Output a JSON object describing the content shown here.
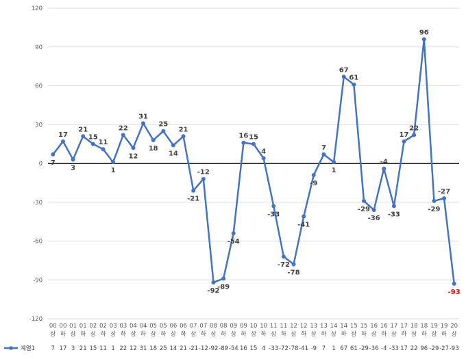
{
  "colors": {
    "series": "#4472c4",
    "grid": "#d9d9d9",
    "zero_line": "#000000",
    "highlight_label": "#ff0000"
  },
  "chart_data": {
    "type": "line",
    "title": "",
    "xlabel": "",
    "ylabel": "",
    "ylim": [
      -120,
      120
    ],
    "yticks": [
      -120,
      -90,
      -60,
      -30,
      0,
      30,
      60,
      90,
      120
    ],
    "grid": true,
    "legend_position": "bottom-left, in data table",
    "data_table": true,
    "categories_top": [
      "00",
      "00",
      "01",
      "01",
      "02",
      "02",
      "03",
      "03",
      "04",
      "04",
      "05",
      "05",
      "06",
      "06",
      "07",
      "07",
      "08",
      "08",
      "09",
      "09",
      "10",
      "10",
      "11",
      "11",
      "12",
      "12",
      "13",
      "13",
      "14",
      "14",
      "15",
      "15",
      "16",
      "16",
      "17",
      "17",
      "18",
      "18",
      "19",
      "19",
      "20"
    ],
    "categories_bottom": [
      "상",
      "하",
      "상",
      "하",
      "상",
      "하",
      "상",
      "하",
      "상",
      "하",
      "상",
      "하",
      "상",
      "하",
      "상",
      "하",
      "상",
      "하",
      "상",
      "하",
      "상",
      "하",
      "상",
      "하",
      "상",
      "하",
      "상",
      "하",
      "상",
      "하",
      "상",
      "하",
      "상",
      "하",
      "상",
      "하",
      "상",
      "하",
      "상",
      "하",
      "상"
    ],
    "series": [
      {
        "name": "계열1",
        "values": [
          7,
          17,
          3,
          21,
          15,
          11,
          1,
          22,
          12,
          31,
          18,
          25,
          14,
          21,
          -21,
          -12,
          -92,
          -89,
          -54,
          16,
          15,
          4,
          -33,
          -72,
          -78,
          -41,
          -9,
          7,
          1,
          67,
          61,
          -29,
          -36,
          -4,
          -33,
          17,
          22,
          96,
          -29,
          -27,
          -93
        ]
      }
    ],
    "highlighted_point_index": 40
  }
}
